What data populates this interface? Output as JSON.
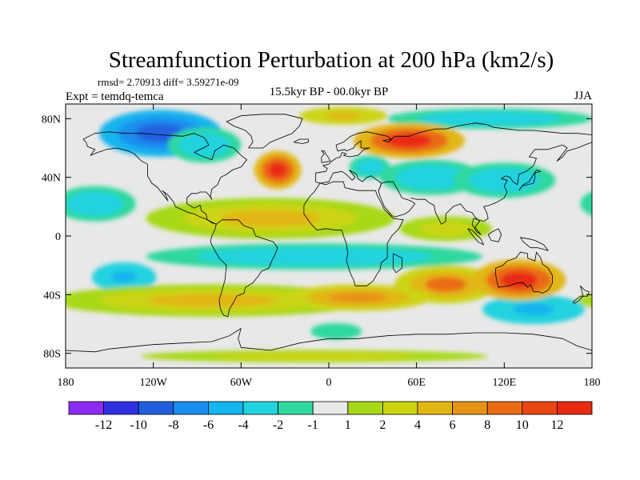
{
  "title": "Streamfunction Perturbation at 200 hPa (km2/s)",
  "stats": "rmsd= 2.70913 diff= 3.59271e-09",
  "experiment": "Expt = temdq-temca",
  "period": "15.5kyr BP - 00.0kyr BP",
  "season": "JJA",
  "axes": {
    "lon_range": [
      -180,
      180
    ],
    "lat_range": [
      -90,
      90
    ],
    "x_ticks": [
      {
        "value": -180,
        "label": "180"
      },
      {
        "value": -120,
        "label": "120W"
      },
      {
        "value": -60,
        "label": "60W"
      },
      {
        "value": 0,
        "label": "0"
      },
      {
        "value": 60,
        "label": "60E"
      },
      {
        "value": 120,
        "label": "120E"
      },
      {
        "value": 180,
        "label": "180"
      }
    ],
    "y_ticks": [
      {
        "value": 80,
        "label": "80N"
      },
      {
        "value": 40,
        "label": "40N"
      },
      {
        "value": 0,
        "label": "0"
      },
      {
        "value": -40,
        "label": "40S"
      },
      {
        "value": -80,
        "label": "80S"
      }
    ]
  },
  "colorbar": {
    "colors": [
      "#8c2bf0",
      "#3030e0",
      "#2060e0",
      "#1a8ef0",
      "#14b4ee",
      "#22d2de",
      "#2ed89e",
      "#e8e8e8",
      "#a8d818",
      "#ccd412",
      "#e2b612",
      "#e69414",
      "#ea6c14",
      "#ea4614",
      "#e82a14"
    ],
    "labels": [
      "-12",
      "-10",
      "-8",
      "-6",
      "-4",
      "-2",
      "-1",
      "1",
      "2",
      "4",
      "6",
      "8",
      "10",
      "12"
    ]
  },
  "chart_data": {
    "type": "heatmap",
    "projection": "cylindrical equidistant",
    "variable": "Streamfunction Perturbation at 200 hPa",
    "units": "km2/s",
    "season": "JJA",
    "levels": [
      -12,
      -10,
      -8,
      -6,
      -4,
      -2,
      -1,
      1,
      2,
      4,
      6,
      8,
      10,
      12
    ],
    "anomalies": [
      {
        "feature": "low",
        "name": "North America / Canada",
        "lon": -115,
        "lat": 70,
        "value": -9,
        "rx": 42,
        "ry": 16
      },
      {
        "feature": "low",
        "name": "Western North Atlantic",
        "lon": -85,
        "lat": 62,
        "value": -3,
        "rx": 25,
        "ry": 12
      },
      {
        "feature": "low",
        "name": "Arctic Siberia",
        "lon": 110,
        "lat": 80,
        "value": -3,
        "rx": 70,
        "ry": 7
      },
      {
        "feature": "low",
        "name": "Eastern Europe",
        "lon": 28,
        "lat": 47,
        "value": -3,
        "rx": 14,
        "ry": 8
      },
      {
        "feature": "low",
        "name": "Central Asia",
        "lon": 70,
        "lat": 40,
        "value": -4,
        "rx": 35,
        "ry": 12
      },
      {
        "feature": "low",
        "name": "East Asia",
        "lon": 120,
        "lat": 38,
        "value": -3,
        "rx": 35,
        "ry": 12
      },
      {
        "feature": "low",
        "name": "Tropical Pacific",
        "lon": -160,
        "lat": 22,
        "value": -4,
        "rx": 28,
        "ry": 12
      },
      {
        "feature": "low",
        "name": "Southern Hemisphere Tropics",
        "lon": -10,
        "lat": -14,
        "value": -3,
        "rx": 115,
        "ry": 9
      },
      {
        "feature": "low",
        "name": "South Pacific",
        "lon": -140,
        "lat": -28,
        "value": -5,
        "rx": 22,
        "ry": 10
      },
      {
        "feature": "low",
        "name": "Southern Ocean (Australia)",
        "lon": 140,
        "lat": -50,
        "value": -5,
        "rx": 35,
        "ry": 10
      },
      {
        "feature": "low",
        "name": "Southern Ocean (Atlantic)",
        "lon": 5,
        "lat": -65,
        "value": -2,
        "rx": 25,
        "ry": 8
      },
      {
        "feature": "high",
        "name": "North Atlantic",
        "lon": -35,
        "lat": 45,
        "value": 12,
        "rx": 16,
        "ry": 13
      },
      {
        "feature": "high",
        "name": "Siberia / Ural",
        "lon": 55,
        "lat": 65,
        "value": 12,
        "rx": 38,
        "ry": 12
      },
      {
        "feature": "high",
        "name": "Arctic Greenland",
        "lon": 10,
        "lat": 82,
        "value": 5,
        "rx": 30,
        "ry": 6
      },
      {
        "feature": "high",
        "name": "Equatorial belt",
        "lon": -40,
        "lat": 12,
        "value": 4,
        "rx": 85,
        "ry": 14
      },
      {
        "feature": "high",
        "name": "Indian Ocean",
        "lon": 80,
        "lat": 5,
        "value": 2,
        "rx": 45,
        "ry": 12
      },
      {
        "feature": "high",
        "name": "South Indian Ocean",
        "lon": 80,
        "lat": -33,
        "value": 8,
        "rx": 35,
        "ry": 13
      },
      {
        "feature": "high",
        "name": "Australia",
        "lon": 130,
        "lat": -30,
        "value": 12,
        "rx": 32,
        "ry": 14
      },
      {
        "feature": "high",
        "name": "Southern Hemisphere midlatitudes",
        "lon": -80,
        "lat": -44,
        "value": 4,
        "rx": 110,
        "ry": 11
      },
      {
        "feature": "high",
        "name": "South Atlantic",
        "lon": 20,
        "lat": -42,
        "value": 6,
        "rx": 50,
        "ry": 9
      },
      {
        "feature": "high",
        "name": "Antarctica",
        "lon": -10,
        "lat": -82,
        "value": 2,
        "rx": 170,
        "ry": 6
      }
    ]
  },
  "icons": {
    "coastlines": "world-coastline-outline"
  }
}
